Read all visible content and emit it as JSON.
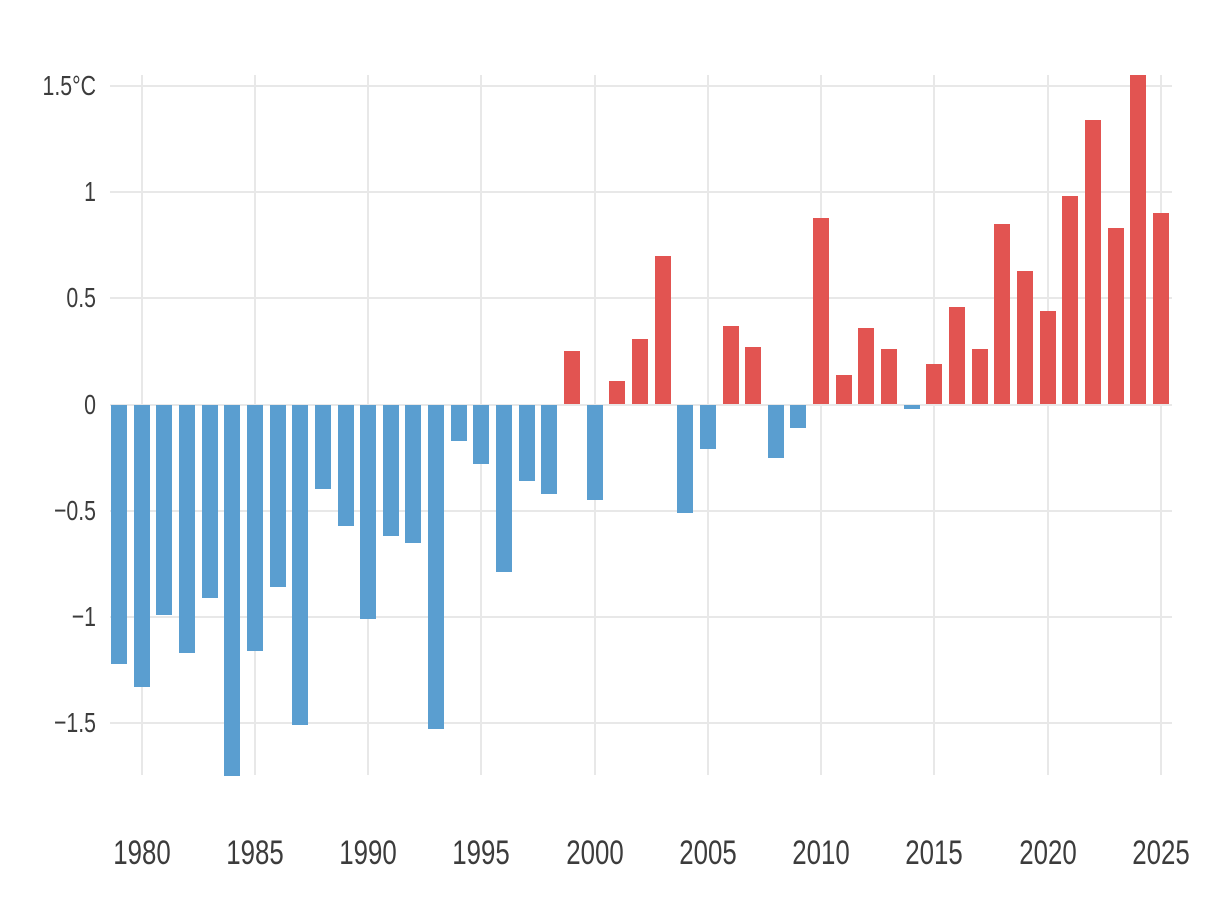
{
  "chart_data": {
    "type": "bar",
    "title": "",
    "xlabel": "",
    "ylabel": "",
    "unit": "°C",
    "grid": true,
    "legend": "none",
    "background": "#ffffff",
    "ylim": [
      -1.75,
      1.55
    ],
    "xlim": [
      1978.5,
      2025.5
    ],
    "x": [
      1979,
      1980,
      1981,
      1982,
      1983,
      1984,
      1985,
      1986,
      1987,
      1988,
      1989,
      1990,
      1991,
      1992,
      1993,
      1994,
      1995,
      1996,
      1997,
      1998,
      1999,
      2000,
      2001,
      2002,
      2003,
      2004,
      2005,
      2006,
      2007,
      2008,
      2009,
      2010,
      2011,
      2012,
      2013,
      2014,
      2015,
      2016,
      2017,
      2018,
      2019,
      2020,
      2021,
      2022,
      2023,
      2024,
      2025
    ],
    "values": [
      -1.22,
      -1.33,
      -0.99,
      -1.17,
      -0.91,
      -1.75,
      -1.16,
      -0.86,
      -1.51,
      -0.4,
      -0.57,
      -1.01,
      -0.62,
      -0.65,
      -1.53,
      -0.17,
      -0.28,
      -0.79,
      -0.36,
      -0.42,
      0.25,
      -0.45,
      0.11,
      0.31,
      0.7,
      -0.51,
      -0.21,
      0.37,
      0.27,
      -0.25,
      -0.11,
      0.88,
      0.14,
      0.36,
      0.26,
      -0.02,
      0.19,
      0.46,
      0.26,
      0.85,
      0.63,
      0.44,
      0.98,
      1.34,
      0.83,
      1.55,
      0.9
    ],
    "y_ticks": [
      {
        "value": 1.5,
        "label": "1.5°C"
      },
      {
        "value": 1,
        "label": "1"
      },
      {
        "value": 0.5,
        "label": "0.5"
      },
      {
        "value": 0,
        "label": "0"
      },
      {
        "value": -0.5,
        "label": "−0.5"
      },
      {
        "value": -1,
        "label": "−1"
      },
      {
        "value": -1.5,
        "label": "−1.5"
      }
    ],
    "x_ticks": [
      {
        "value": 1980,
        "label": "1980"
      },
      {
        "value": 1985,
        "label": "1985"
      },
      {
        "value": 1990,
        "label": "1990"
      },
      {
        "value": 1995,
        "label": "1995"
      },
      {
        "value": 2000,
        "label": "2000"
      },
      {
        "value": 2005,
        "label": "2005"
      },
      {
        "value": 2010,
        "label": "2010"
      },
      {
        "value": 2015,
        "label": "2015"
      },
      {
        "value": 2020,
        "label": "2020"
      },
      {
        "value": 2025,
        "label": "2025"
      }
    ],
    "colors": {
      "positive": "#e25451",
      "negative": "#5a9ed0",
      "gridline": "#e8e8e8",
      "text": "#3c3c3c"
    }
  }
}
